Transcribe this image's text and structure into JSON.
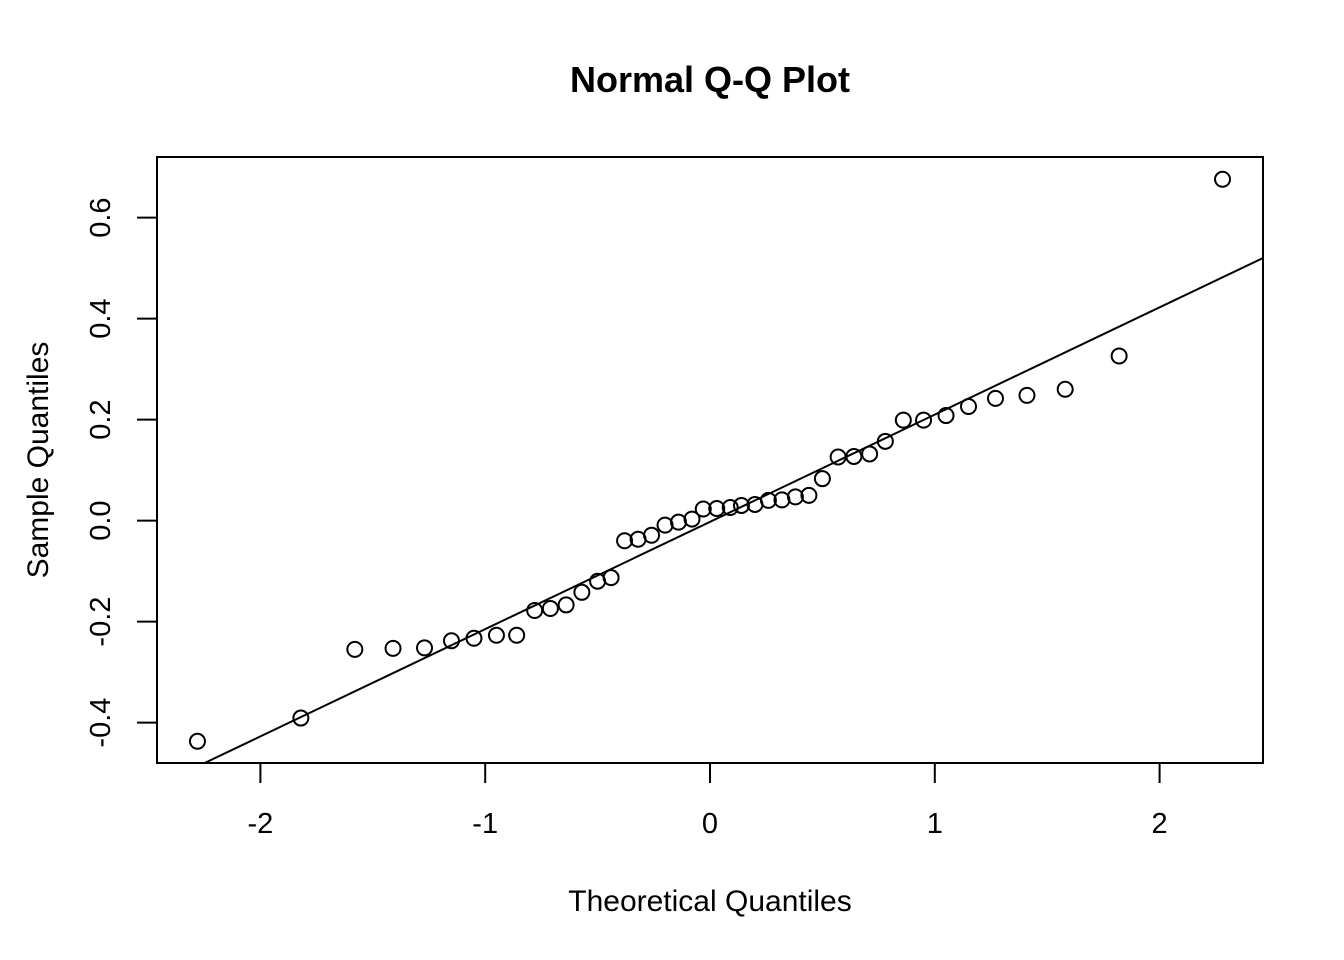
{
  "chart_data": {
    "type": "scatter",
    "title": "Normal Q-Q Plot",
    "xlabel": "Theoretical Quantiles",
    "ylabel": "Sample Quantiles",
    "xlim": [
      -2.46,
      2.46
    ],
    "ylim": [
      -0.48,
      0.72
    ],
    "x_ticks": [
      -2,
      -1,
      0,
      1,
      2
    ],
    "x_tick_labels": [
      "-2",
      "-1",
      "0",
      "1",
      "2"
    ],
    "y_ticks": [
      -0.4,
      -0.2,
      0.0,
      0.2,
      0.4,
      0.6
    ],
    "y_tick_labels": [
      "-0.4",
      "-0.2",
      "0.0",
      "0.2",
      "0.4",
      "0.6"
    ],
    "grid": false,
    "legend": "none",
    "reference_line": {
      "type": "qqline",
      "x": [
        -2.46,
        2.46
      ],
      "y": [
        -0.525,
        0.52
      ]
    },
    "points": {
      "x": [
        -2.28,
        -1.82,
        -1.58,
        -1.41,
        -1.27,
        -1.15,
        -1.05,
        -0.95,
        -0.86,
        -0.78,
        -0.71,
        -0.64,
        -0.57,
        -0.5,
        -0.44,
        -0.38,
        -0.32,
        -0.26,
        -0.2,
        -0.14,
        -0.08,
        -0.03,
        0.03,
        0.09,
        0.14,
        0.2,
        0.26,
        0.32,
        0.38,
        0.44,
        0.5,
        0.57,
        0.64,
        0.71,
        0.78,
        0.86,
        0.95,
        1.05,
        1.15,
        1.27,
        1.41,
        1.58,
        1.82,
        2.28
      ],
      "y": [
        -0.437,
        -0.391,
        -0.255,
        -0.253,
        -0.252,
        -0.238,
        -0.233,
        -0.227,
        -0.227,
        -0.178,
        -0.174,
        -0.167,
        -0.142,
        -0.12,
        -0.113,
        -0.04,
        -0.037,
        -0.029,
        -0.009,
        -0.003,
        0.003,
        0.023,
        0.024,
        0.026,
        0.03,
        0.032,
        0.04,
        0.041,
        0.047,
        0.05,
        0.083,
        0.126,
        0.127,
        0.132,
        0.157,
        0.199,
        0.199,
        0.208,
        0.226,
        0.242,
        0.248,
        0.26,
        0.326,
        0.676
      ]
    }
  }
}
